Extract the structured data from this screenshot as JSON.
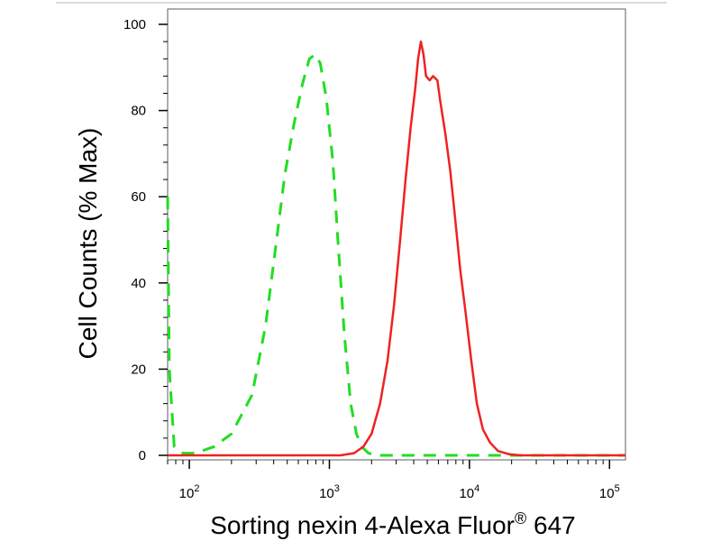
{
  "chart_data": {
    "type": "line",
    "xlabel_main": "Sorting nexin 4-Alexa Fluor",
    "xlabel_sup": "®",
    "xlabel_tail": " 647",
    "ylabel": "Cell Counts (% Max)",
    "x_scale": "log",
    "xlim": [
      70,
      130000
    ],
    "ylim": [
      0,
      105
    ],
    "yticks": [
      "0",
      "20",
      "40",
      "60",
      "80",
      "100"
    ],
    "yticks_values": [
      0,
      20,
      40,
      60,
      80,
      100
    ],
    "xticks": [
      {
        "base": "10",
        "exp": "2",
        "value": 100
      },
      {
        "base": "10",
        "exp": "3",
        "value": 1000
      },
      {
        "base": "10",
        "exp": "4",
        "value": 10000
      },
      {
        "base": "10",
        "exp": "5",
        "value": 100000
      }
    ],
    "grid": false,
    "legend": "none",
    "series": [
      {
        "style": "dashed",
        "color": "#22dd22",
        "points": [
          [
            70,
            60
          ],
          [
            72,
            20
          ],
          [
            78,
            2
          ],
          [
            90,
            0.5
          ],
          [
            110,
            0.5
          ],
          [
            150,
            2
          ],
          [
            200,
            5
          ],
          [
            280,
            14
          ],
          [
            350,
            30
          ],
          [
            420,
            50
          ],
          [
            480,
            65
          ],
          [
            560,
            77
          ],
          [
            640,
            86
          ],
          [
            720,
            92
          ],
          [
            790,
            93
          ],
          [
            860,
            91
          ],
          [
            950,
            83
          ],
          [
            1060,
            68
          ],
          [
            1150,
            50
          ],
          [
            1280,
            28
          ],
          [
            1420,
            12
          ],
          [
            1560,
            5
          ],
          [
            1700,
            2
          ],
          [
            1900,
            0.5
          ],
          [
            2200,
            0
          ],
          [
            130000,
            0
          ]
        ]
      },
      {
        "style": "solid",
        "color": "#ee2222",
        "points": [
          [
            70,
            0
          ],
          [
            1200,
            0
          ],
          [
            1500,
            0.5
          ],
          [
            1750,
            2
          ],
          [
            2000,
            5
          ],
          [
            2300,
            12
          ],
          [
            2600,
            22
          ],
          [
            2900,
            35
          ],
          [
            3200,
            50
          ],
          [
            3500,
            64
          ],
          [
            3800,
            76
          ],
          [
            4100,
            85
          ],
          [
            4300,
            92
          ],
          [
            4500,
            96
          ],
          [
            4700,
            93
          ],
          [
            4900,
            88
          ],
          [
            5200,
            87
          ],
          [
            5500,
            88
          ],
          [
            5900,
            87
          ],
          [
            6200,
            82
          ],
          [
            6700,
            75
          ],
          [
            7300,
            66
          ],
          [
            7900,
            55
          ],
          [
            8600,
            43
          ],
          [
            9400,
            33
          ],
          [
            10300,
            22
          ],
          [
            11300,
            12
          ],
          [
            12500,
            6
          ],
          [
            14000,
            3
          ],
          [
            16000,
            1
          ],
          [
            19000,
            0.3
          ],
          [
            23000,
            0
          ],
          [
            130000,
            0
          ]
        ]
      }
    ]
  }
}
